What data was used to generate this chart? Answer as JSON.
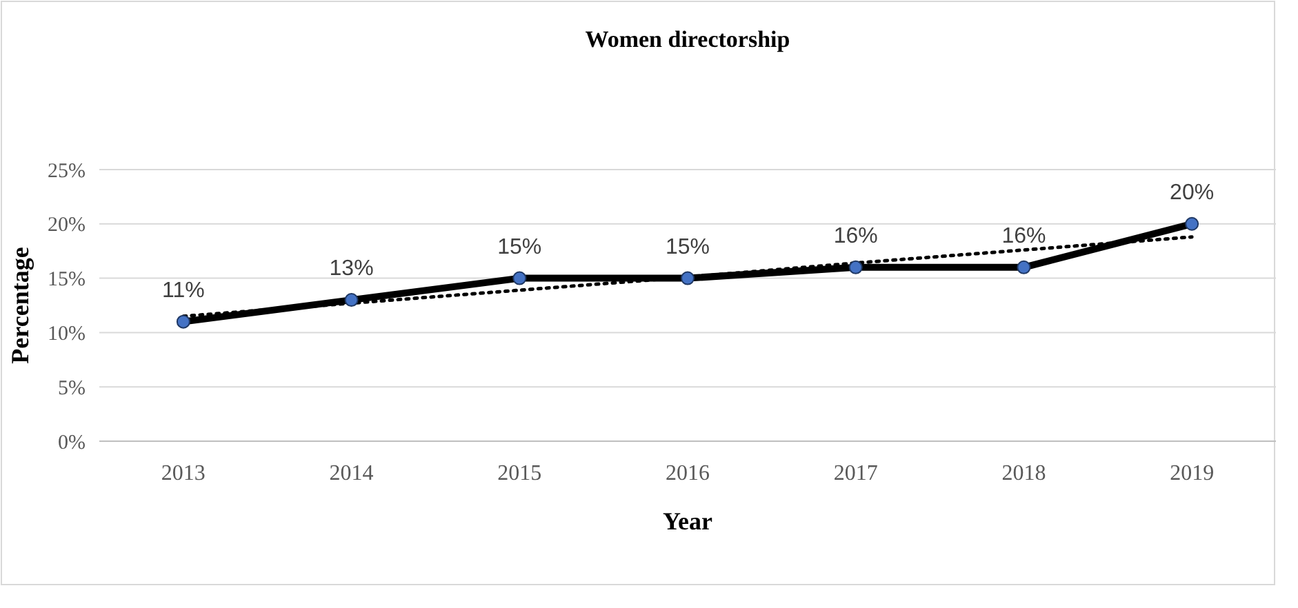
{
  "chart_data": {
    "type": "line",
    "title": "Women directorship",
    "xlabel": "Year",
    "ylabel": "Percentage",
    "categories": [
      "2013",
      "2014",
      "2015",
      "2016",
      "2017",
      "2018",
      "2019"
    ],
    "series": [
      {
        "color": "#000000",
        "values": [
          11,
          13,
          15,
          15,
          16,
          16,
          20
        ],
        "marker": "circle",
        "line_style": "solid",
        "value_labels": [
          "11%",
          "13%",
          "15%",
          "15%",
          "16%",
          "16%",
          "20%"
        ]
      },
      {
        "color": "#000000",
        "values": [
          11.5,
          12.7,
          13.9,
          15.1,
          16.4,
          17.6,
          18.8
        ],
        "marker": "none",
        "line_style": "dotted"
      }
    ],
    "ylim": [
      0,
      25
    ],
    "yticks": [
      {
        "value": 0,
        "label": "0%"
      },
      {
        "value": 5,
        "label": "5%"
      },
      {
        "value": 10,
        "label": "10%"
      },
      {
        "value": 15,
        "label": "15%"
      },
      {
        "value": 20,
        "label": "20%"
      },
      {
        "value": 25,
        "label": "25%"
      }
    ],
    "grid": "y"
  }
}
